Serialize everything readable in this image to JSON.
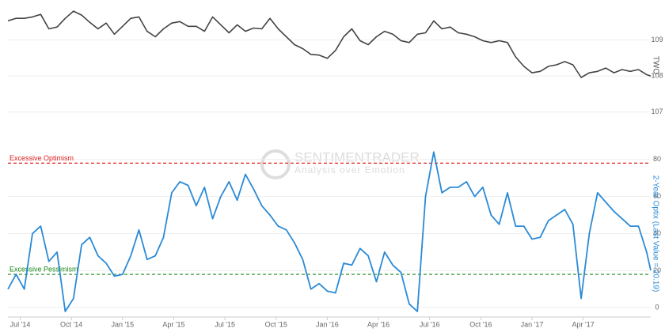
{
  "chart_data": [
    {
      "type": "line",
      "ylabel": "TWO",
      "x": [
        2014.44,
        2014.48,
        2014.52,
        2014.56,
        2014.6,
        2014.64,
        2014.68,
        2014.72,
        2014.76,
        2014.8,
        2014.84,
        2014.88,
        2014.92,
        2014.96,
        2015.0,
        2015.04,
        2015.08,
        2015.12,
        2015.16,
        2015.2,
        2015.24,
        2015.28,
        2015.32,
        2015.36,
        2015.4,
        2015.44,
        2015.48,
        2015.52,
        2015.56,
        2015.6,
        2015.64,
        2015.68,
        2015.72,
        2015.76,
        2015.8,
        2015.84,
        2015.88,
        2015.92,
        2015.96,
        2016.0,
        2016.04,
        2016.08,
        2016.12,
        2016.16,
        2016.2,
        2016.24,
        2016.28,
        2016.32,
        2016.36,
        2016.4,
        2016.44,
        2016.48,
        2016.52,
        2016.56,
        2016.6,
        2016.64,
        2016.68,
        2016.72,
        2016.76,
        2016.8,
        2016.84,
        2016.88,
        2016.92,
        2016.96,
        2017.0,
        2017.04,
        2017.08,
        2017.12,
        2017.16,
        2017.2,
        2017.24,
        2017.28,
        2017.32,
        2017.36,
        2017.4,
        2017.44,
        2017.48,
        2017.52,
        2017.56,
        2017.58
      ],
      "series": [
        {
          "name": "TWO",
          "color": "#444444",
          "values": [
            109.53,
            109.6,
            109.6,
            109.64,
            109.71,
            109.31,
            109.36,
            109.6,
            109.8,
            109.69,
            109.49,
            109.31,
            109.47,
            109.16,
            109.38,
            109.6,
            109.64,
            109.24,
            109.09,
            109.31,
            109.47,
            109.51,
            109.38,
            109.38,
            109.24,
            109.64,
            109.42,
            109.2,
            109.42,
            109.24,
            109.33,
            109.31,
            109.6,
            109.31,
            109.09,
            108.87,
            108.76,
            108.6,
            108.58,
            108.49,
            108.71,
            109.09,
            109.31,
            108.98,
            108.87,
            109.09,
            109.24,
            109.16,
            108.98,
            108.93,
            109.16,
            109.2,
            109.53,
            109.31,
            109.36,
            109.2,
            109.16,
            109.09,
            108.98,
            108.93,
            108.98,
            108.93,
            108.53,
            108.27,
            108.09,
            108.13,
            108.27,
            108.31,
            108.4,
            108.31,
            107.96,
            108.09,
            108.13,
            108.22,
            108.09,
            108.18,
            108.13,
            108.18,
            108.04,
            108.0
          ]
        }
      ],
      "xlim": [
        2014.44,
        2017.58
      ],
      "ylim": [
        106.6,
        110
      ],
      "yticks": [
        107,
        108,
        109
      ],
      "grid": true
    },
    {
      "type": "line",
      "ylabel": "2-Year Optix (Last Value = 20.19)",
      "x": [
        2014.44,
        2014.48,
        2014.52,
        2014.56,
        2014.6,
        2014.64,
        2014.68,
        2014.72,
        2014.76,
        2014.8,
        2014.84,
        2014.88,
        2014.92,
        2014.96,
        2015.0,
        2015.04,
        2015.08,
        2015.12,
        2015.16,
        2015.2,
        2015.24,
        2015.28,
        2015.32,
        2015.36,
        2015.4,
        2015.44,
        2015.48,
        2015.52,
        2015.56,
        2015.6,
        2015.64,
        2015.68,
        2015.72,
        2015.76,
        2015.8,
        2015.84,
        2015.88,
        2015.92,
        2015.96,
        2016.0,
        2016.04,
        2016.08,
        2016.12,
        2016.16,
        2016.2,
        2016.24,
        2016.28,
        2016.32,
        2016.36,
        2016.4,
        2016.44,
        2016.48,
        2016.52,
        2016.56,
        2016.6,
        2016.64,
        2016.68,
        2016.72,
        2016.76,
        2016.8,
        2016.84,
        2016.88,
        2016.92,
        2016.96,
        2017.0,
        2017.04,
        2017.08,
        2017.12,
        2017.16,
        2017.2,
        2017.24,
        2017.28,
        2017.32,
        2017.36,
        2017.4,
        2017.44,
        2017.48,
        2017.52,
        2017.56,
        2017.58
      ],
      "series": [
        {
          "name": "2-Year Optix",
          "color": "#2b8ad6",
          "values": [
            10,
            18,
            10,
            40,
            44,
            25,
            30,
            -2,
            5,
            34,
            38,
            28,
            24,
            17,
            18,
            28,
            42,
            26,
            28,
            38,
            62,
            68,
            66,
            55,
            65,
            48,
            60,
            68,
            58,
            72,
            64,
            55,
            50,
            44,
            42,
            35,
            26,
            10,
            13,
            9,
            8,
            24,
            23,
            32,
            28,
            14,
            30,
            23,
            19,
            2,
            -2,
            60,
            84,
            62,
            65,
            65,
            68,
            60,
            65,
            50,
            45,
            62,
            44,
            44,
            37,
            38,
            47,
            50,
            53,
            45,
            5,
            40,
            62,
            57,
            52,
            48,
            44,
            44,
            30,
            20.19
          ]
        }
      ],
      "xlim": [
        2014.44,
        2017.58
      ],
      "ylim": [
        -5,
        85
      ],
      "yticks": [
        0,
        20,
        40,
        60,
        80
      ],
      "grid": true,
      "xticks": [
        {
          "value": 2014.5,
          "label": "Jul '14"
        },
        {
          "value": 2014.75,
          "label": "Oct '14"
        },
        {
          "value": 2015.0,
          "label": "Jan '15"
        },
        {
          "value": 2015.25,
          "label": "Apr '15"
        },
        {
          "value": 2015.5,
          "label": "Jul '15"
        },
        {
          "value": 2015.75,
          "label": "Oct '15"
        },
        {
          "value": 2016.0,
          "label": "Jan '16"
        },
        {
          "value": 2016.25,
          "label": "Apr '16"
        },
        {
          "value": 2016.5,
          "label": "Jul '16"
        },
        {
          "value": 2016.75,
          "label": "Oct '16"
        },
        {
          "value": 2017.0,
          "label": "Jan '17"
        },
        {
          "value": 2017.25,
          "label": "Apr '17"
        }
      ],
      "reference_lines": [
        {
          "value": 78,
          "label": "Excessive Optimism",
          "color": "#e02020"
        },
        {
          "value": 18,
          "label": "Excessive Pessimism",
          "color": "#1a8a1a"
        }
      ],
      "watermark": [
        "SENTIMENTRADER",
        "Analysis over Emotion"
      ]
    }
  ]
}
